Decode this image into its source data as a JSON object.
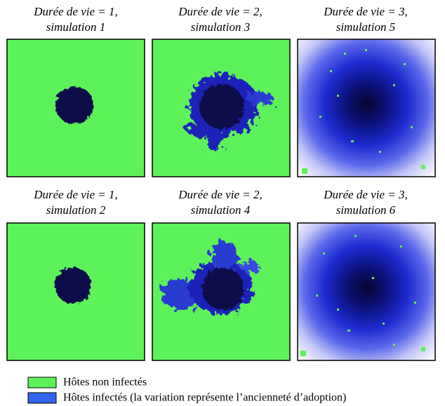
{
  "panels": [
    {
      "title_line1": "Durée de vie = 1,",
      "title_line2": "simulation 1"
    },
    {
      "title_line1": "Durée de vie = 2,",
      "title_line2": "simulation 3"
    },
    {
      "title_line1": "Durée de vie = 3,",
      "title_line2": "simulation 5"
    },
    {
      "title_line1": "Durée de vie = 1,",
      "title_line2": "simulation 2"
    },
    {
      "title_line1": "Durée de vie = 2,",
      "title_line2": "simulation 4"
    },
    {
      "title_line1": "Durée de vie = 3,",
      "title_line2": "simulation 6"
    }
  ],
  "legend": [
    {
      "label": "Hôtes non infectés"
    },
    {
      "label": "Hôtes infectés (la variation représente l’ancienneté d’adoption)"
    }
  ]
}
